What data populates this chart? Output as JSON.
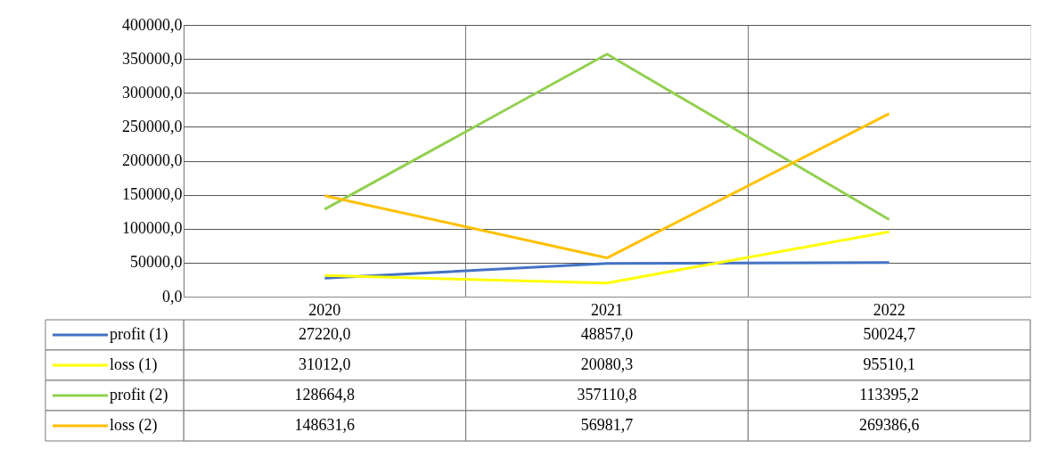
{
  "chart_data": {
    "type": "line",
    "categories": [
      "2020",
      "2021",
      "2022"
    ],
    "series": [
      {
        "name": "profit (1)",
        "color": "#4472c4",
        "values": [
          27220.0,
          48857.0,
          50024.7
        ],
        "value_labels": [
          "27220,0",
          "48857,0",
          "50024,7"
        ]
      },
      {
        "name": "loss (1)",
        "color": "#ffff00",
        "values": [
          31012.0,
          20080.3,
          95510.1
        ],
        "value_labels": [
          "31012,0",
          "20080,3",
          "95510,1"
        ]
      },
      {
        "name": "profit (2)",
        "color": "#92d050",
        "values": [
          128664.8,
          357110.8,
          113395.2
        ],
        "value_labels": [
          "128664,8",
          "357110,8",
          "113395,2"
        ]
      },
      {
        "name": "loss (2)",
        "color": "#ffc000",
        "values": [
          148631.6,
          56981.7,
          269386.6
        ],
        "value_labels": [
          "148631,6",
          "56981,7",
          "269386,6"
        ]
      }
    ],
    "ylim": [
      0,
      400000
    ],
    "yticks": [
      {
        "value": 0,
        "label": "0,0"
      },
      {
        "value": 50000,
        "label": "50000,0"
      },
      {
        "value": 100000,
        "label": "100000,0"
      },
      {
        "value": 150000,
        "label": "150000,0"
      },
      {
        "value": 200000,
        "label": "200000,0"
      },
      {
        "value": 250000,
        "label": "250000,0"
      },
      {
        "value": 300000,
        "label": "300000,0"
      },
      {
        "value": 350000,
        "label": "350000,0"
      },
      {
        "value": 400000,
        "label": "400000,0"
      }
    ],
    "grid": true,
    "legend": "bottom",
    "line_style": "solid",
    "marker": "none"
  }
}
